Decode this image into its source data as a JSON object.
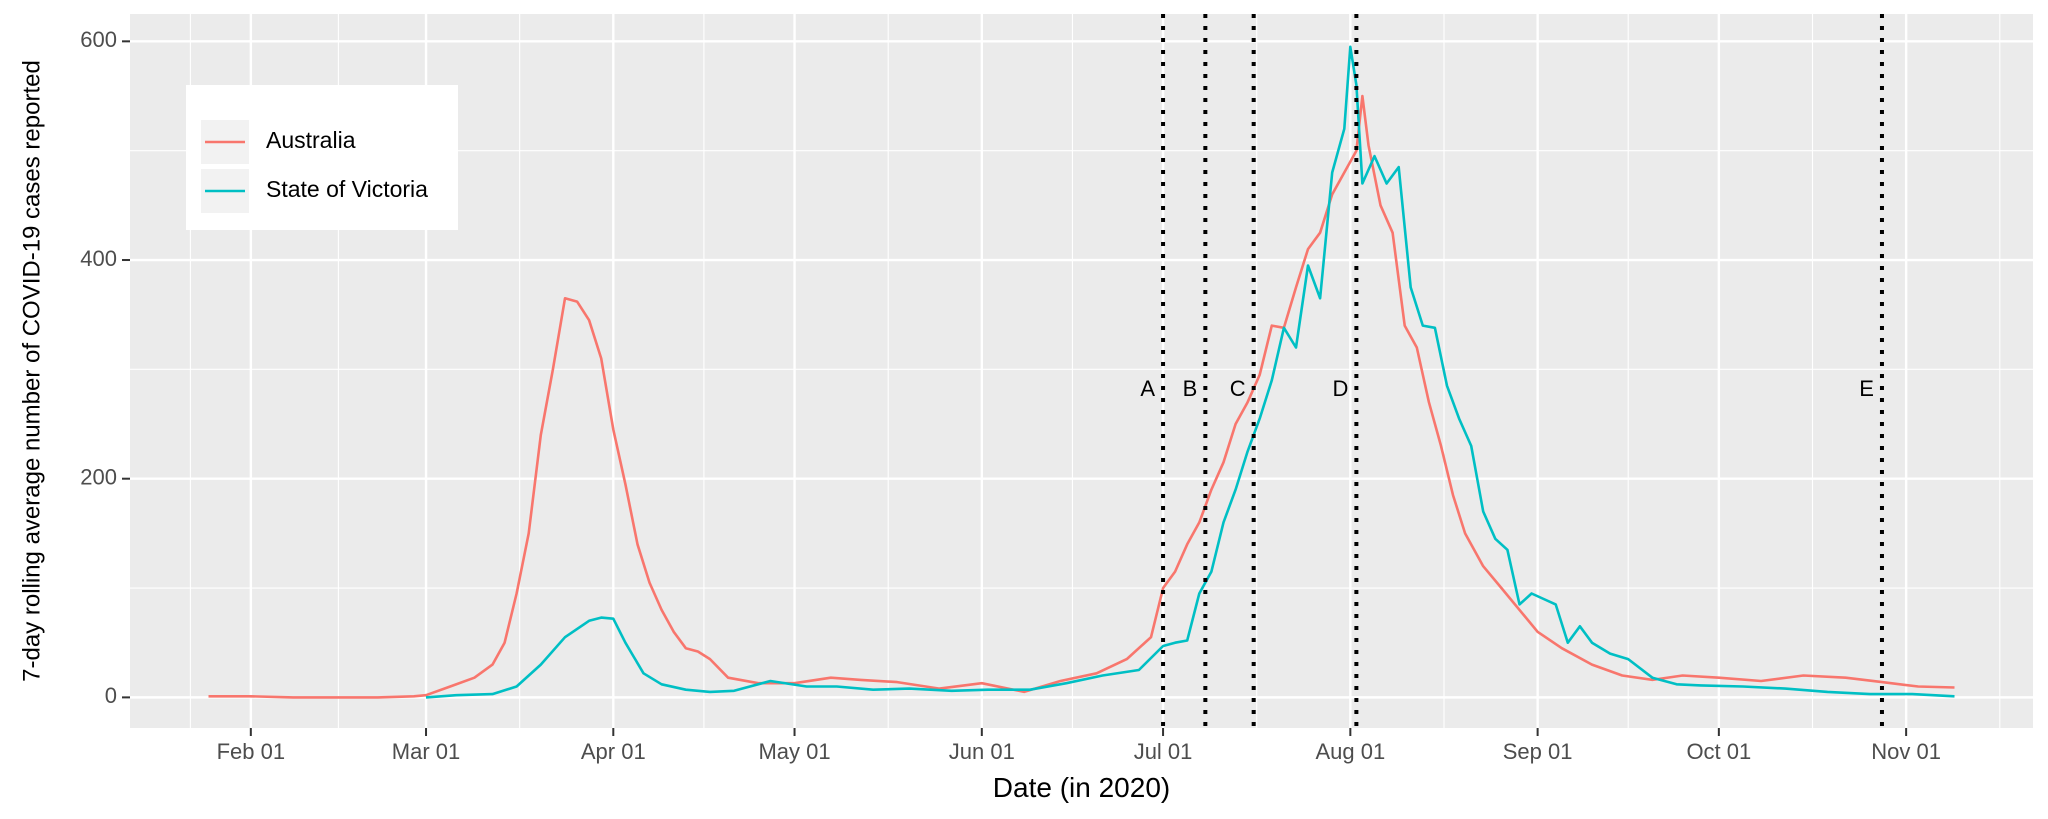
{
  "chart_data": {
    "type": "line",
    "xlabel": "Date (in 2020)",
    "ylabel": "7-day rolling average number of COVID-19 cases reported",
    "xlim": [
      "2020-01-12",
      "2020-11-22"
    ],
    "ylim": [
      -28,
      625
    ],
    "x_ticks": [
      {
        "date": "2020-02-01",
        "label": "Feb 01"
      },
      {
        "date": "2020-03-01",
        "label": "Mar 01"
      },
      {
        "date": "2020-04-01",
        "label": "Apr 01"
      },
      {
        "date": "2020-05-01",
        "label": "May 01"
      },
      {
        "date": "2020-06-01",
        "label": "Jun 01"
      },
      {
        "date": "2020-07-01",
        "label": "Jul 01"
      },
      {
        "date": "2020-08-01",
        "label": "Aug 01"
      },
      {
        "date": "2020-09-01",
        "label": "Sep 01"
      },
      {
        "date": "2020-10-01",
        "label": "Oct 01"
      },
      {
        "date": "2020-11-01",
        "label": "Nov 01"
      }
    ],
    "y_ticks": [
      0,
      200,
      400,
      600
    ],
    "grid": true,
    "legend_position": "top-left",
    "colors": {
      "Australia": "#F8766D",
      "State of Victoria": "#00BFC4"
    },
    "series": [
      {
        "name": "Australia",
        "x": [
          "2020-01-25",
          "2020-02-01",
          "2020-02-08",
          "2020-02-15",
          "2020-02-22",
          "2020-02-28",
          "2020-03-01",
          "2020-03-05",
          "2020-03-09",
          "2020-03-12",
          "2020-03-14",
          "2020-03-16",
          "2020-03-18",
          "2020-03-20",
          "2020-03-22",
          "2020-03-24",
          "2020-03-26",
          "2020-03-28",
          "2020-03-30",
          "2020-04-01",
          "2020-04-03",
          "2020-04-05",
          "2020-04-07",
          "2020-04-09",
          "2020-04-11",
          "2020-04-13",
          "2020-04-15",
          "2020-04-17",
          "2020-04-20",
          "2020-04-25",
          "2020-05-01",
          "2020-05-07",
          "2020-05-12",
          "2020-05-18",
          "2020-05-25",
          "2020-06-01",
          "2020-06-08",
          "2020-06-14",
          "2020-06-20",
          "2020-06-25",
          "2020-06-29",
          "2020-07-01",
          "2020-07-03",
          "2020-07-05",
          "2020-07-07",
          "2020-07-09",
          "2020-07-11",
          "2020-07-13",
          "2020-07-15",
          "2020-07-17",
          "2020-07-19",
          "2020-07-21",
          "2020-07-23",
          "2020-07-25",
          "2020-07-27",
          "2020-07-29",
          "2020-07-31",
          "2020-08-02",
          "2020-08-03",
          "2020-08-04",
          "2020-08-06",
          "2020-08-08",
          "2020-08-10",
          "2020-08-12",
          "2020-08-14",
          "2020-08-16",
          "2020-08-18",
          "2020-08-20",
          "2020-08-23",
          "2020-08-26",
          "2020-08-29",
          "2020-09-01",
          "2020-09-05",
          "2020-09-10",
          "2020-09-15",
          "2020-09-20",
          "2020-09-25",
          "2020-10-01",
          "2020-10-08",
          "2020-10-15",
          "2020-10-22",
          "2020-10-28",
          "2020-11-03",
          "2020-11-09"
        ],
        "values": [
          1,
          1,
          0,
          0,
          0,
          1,
          2,
          10,
          18,
          30,
          50,
          95,
          150,
          240,
          300,
          365,
          362,
          345,
          310,
          245,
          195,
          140,
          105,
          80,
          60,
          45,
          42,
          35,
          18,
          13,
          13,
          18,
          16,
          14,
          8,
          13,
          5,
          15,
          22,
          35,
          55,
          100,
          115,
          140,
          160,
          190,
          215,
          250,
          270,
          295,
          340,
          338,
          375,
          410,
          425,
          460,
          480,
          500,
          550,
          505,
          450,
          425,
          340,
          320,
          270,
          230,
          185,
          150,
          120,
          100,
          80,
          60,
          45,
          30,
          20,
          16,
          20,
          18,
          15,
          20,
          18,
          14,
          10,
          9
        ]
      },
      {
        "name": "State of Victoria",
        "x": [
          "2020-03-01",
          "2020-03-06",
          "2020-03-12",
          "2020-03-16",
          "2020-03-20",
          "2020-03-24",
          "2020-03-28",
          "2020-03-30",
          "2020-04-01",
          "2020-04-03",
          "2020-04-06",
          "2020-04-09",
          "2020-04-13",
          "2020-04-17",
          "2020-04-21",
          "2020-04-27",
          "2020-05-03",
          "2020-05-08",
          "2020-05-14",
          "2020-05-20",
          "2020-05-27",
          "2020-06-02",
          "2020-06-09",
          "2020-06-15",
          "2020-06-21",
          "2020-06-27",
          "2020-07-01",
          "2020-07-03",
          "2020-07-05",
          "2020-07-07",
          "2020-07-09",
          "2020-07-11",
          "2020-07-13",
          "2020-07-15",
          "2020-07-17",
          "2020-07-19",
          "2020-07-21",
          "2020-07-23",
          "2020-07-25",
          "2020-07-27",
          "2020-07-29",
          "2020-07-31",
          "2020-08-01",
          "2020-08-02",
          "2020-08-03",
          "2020-08-05",
          "2020-08-07",
          "2020-08-09",
          "2020-08-11",
          "2020-08-13",
          "2020-08-15",
          "2020-08-17",
          "2020-08-19",
          "2020-08-21",
          "2020-08-23",
          "2020-08-25",
          "2020-08-27",
          "2020-08-29",
          "2020-08-31",
          "2020-09-02",
          "2020-09-04",
          "2020-09-06",
          "2020-09-08",
          "2020-09-10",
          "2020-09-13",
          "2020-09-16",
          "2020-09-20",
          "2020-09-24",
          "2020-09-28",
          "2020-10-05",
          "2020-10-12",
          "2020-10-19",
          "2020-10-26",
          "2020-11-02",
          "2020-11-09"
        ],
        "values": [
          0,
          2,
          3,
          10,
          30,
          55,
          70,
          73,
          72,
          50,
          22,
          12,
          7,
          5,
          6,
          15,
          10,
          10,
          7,
          8,
          6,
          7,
          7,
          13,
          20,
          25,
          47,
          50,
          52,
          95,
          115,
          160,
          190,
          225,
          255,
          290,
          338,
          320,
          395,
          365,
          480,
          520,
          595,
          560,
          470,
          495,
          470,
          485,
          375,
          340,
          338,
          285,
          255,
          230,
          170,
          145,
          135,
          85,
          95,
          90,
          85,
          50,
          65,
          50,
          40,
          35,
          18,
          12,
          11,
          10,
          8,
          5,
          3,
          3,
          1
        ]
      }
    ],
    "vlines": [
      {
        "date": "2020-07-01",
        "label": "A"
      },
      {
        "date": "2020-07-08",
        "label": "B"
      },
      {
        "date": "2020-07-16",
        "label": "C"
      },
      {
        "date": "2020-08-02",
        "label": "D"
      },
      {
        "date": "2020-10-28",
        "label": "E"
      }
    ]
  }
}
